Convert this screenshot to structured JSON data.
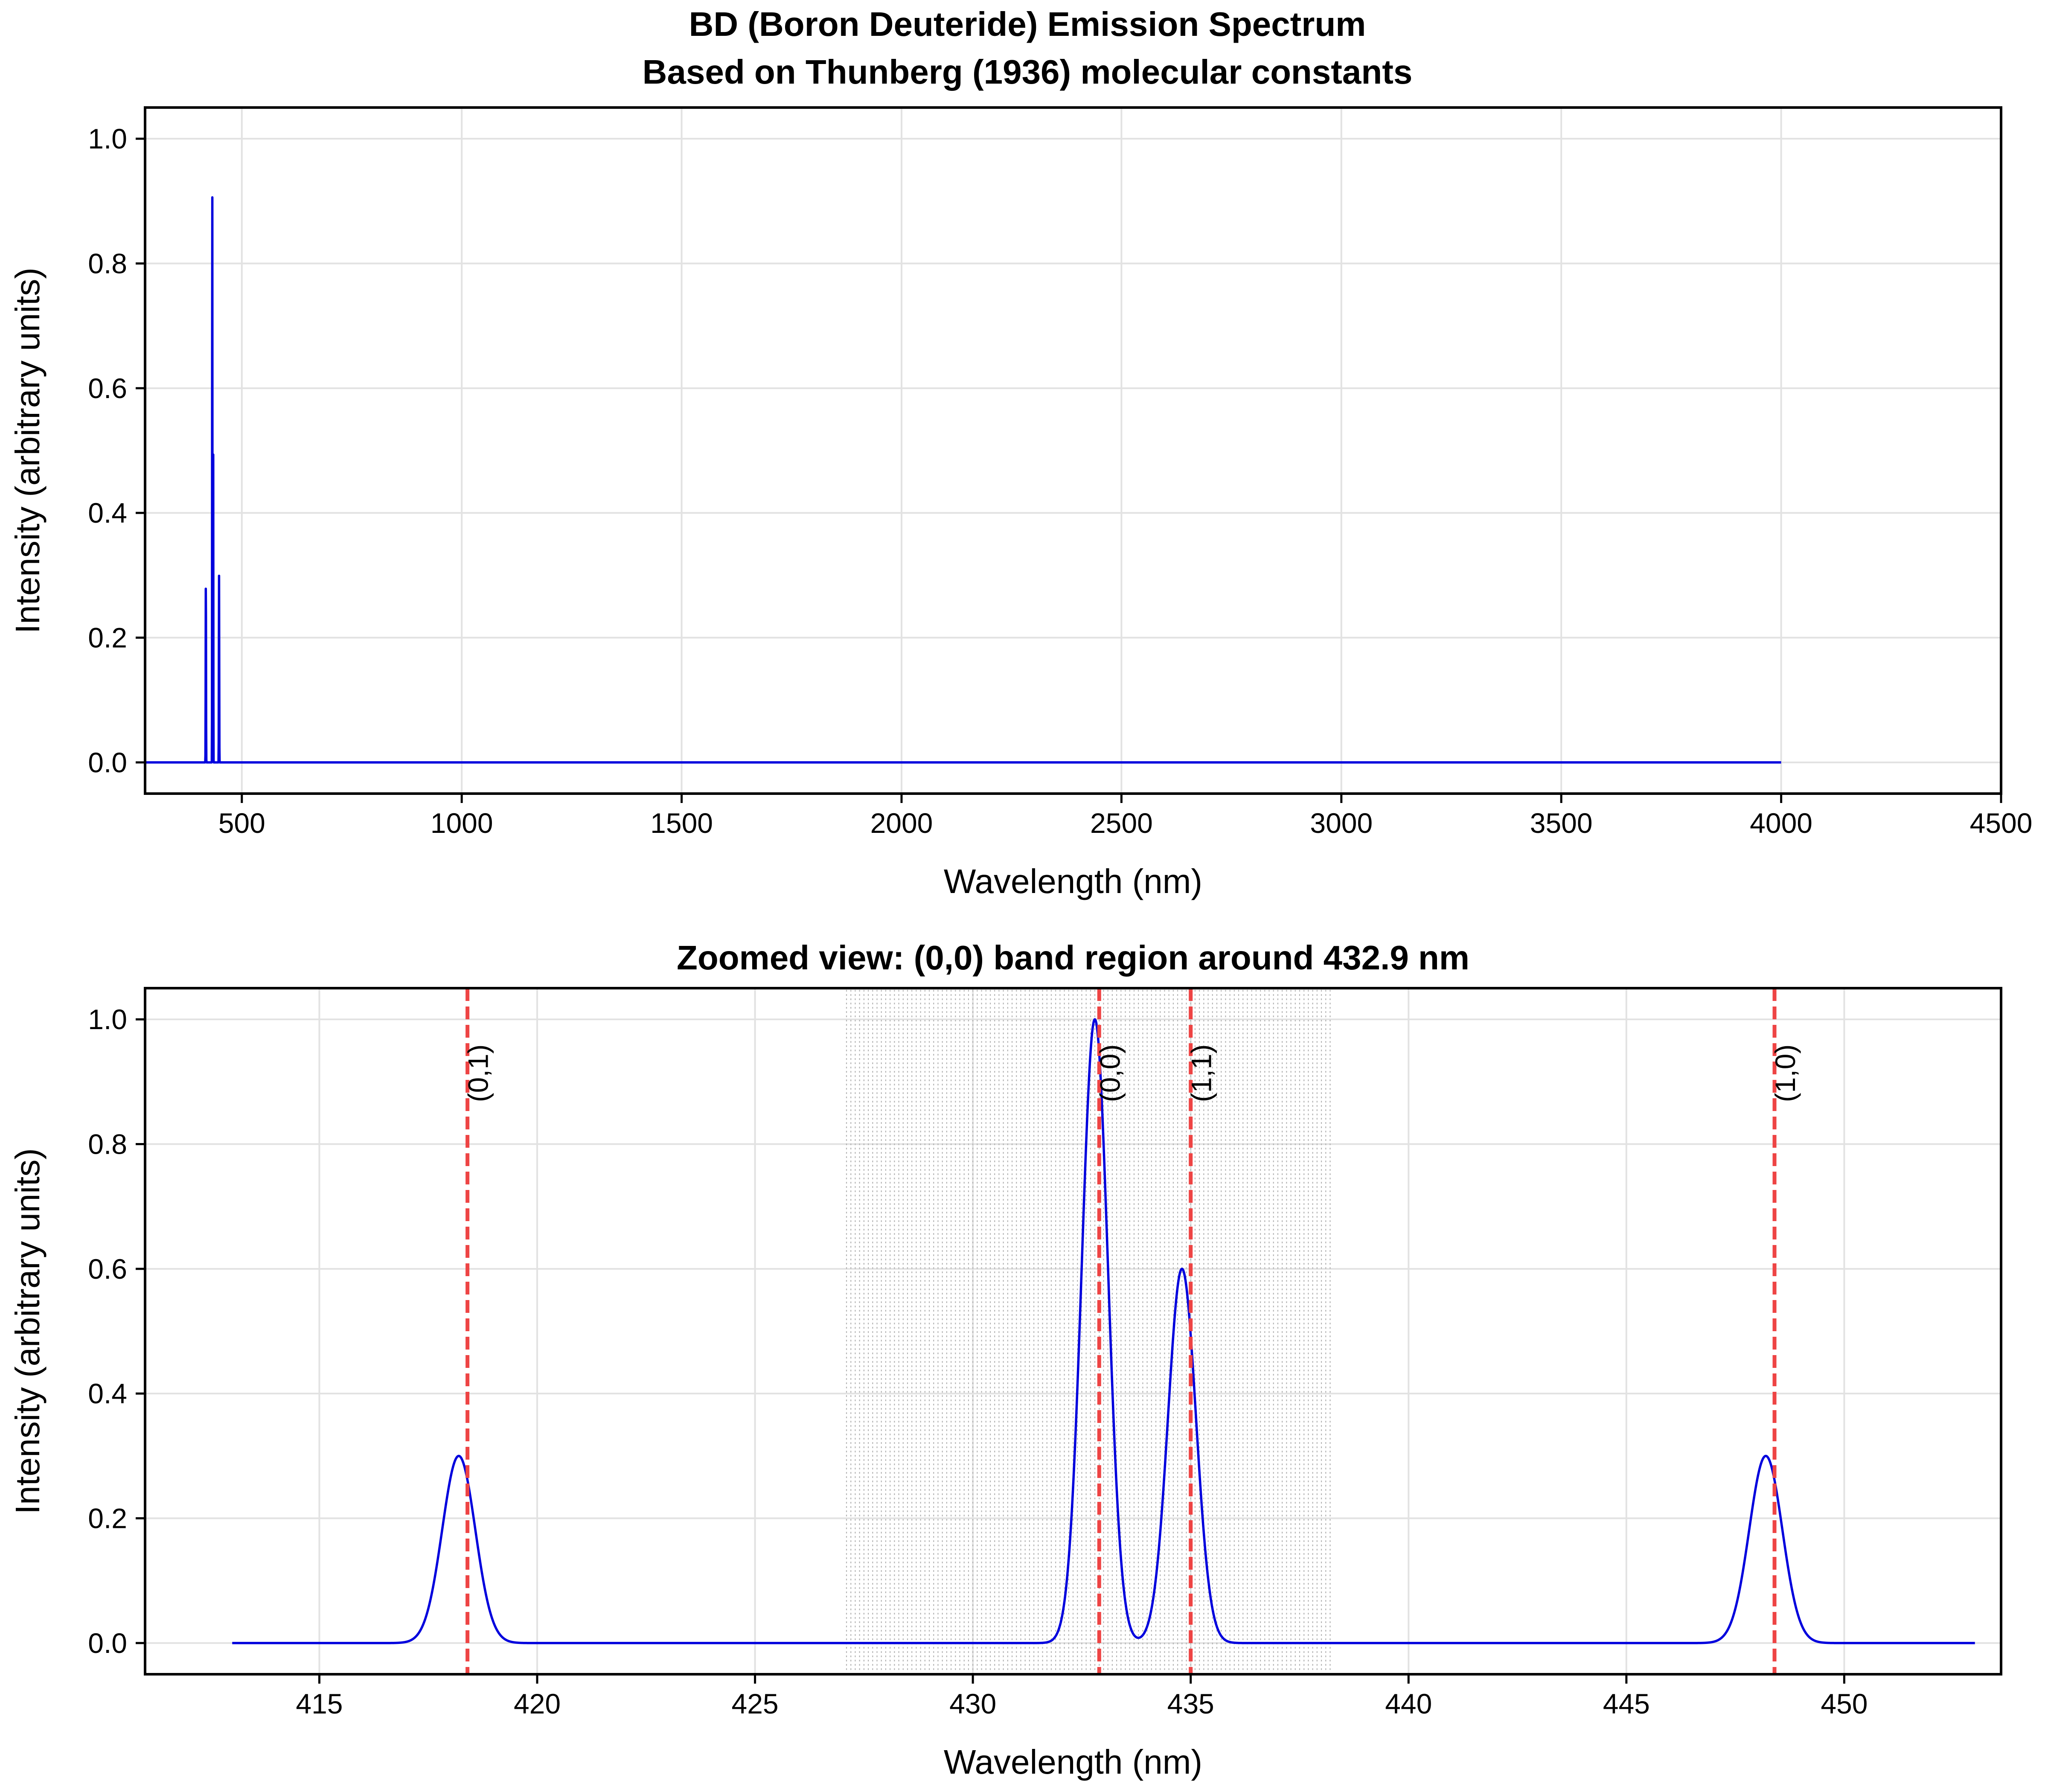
{
  "figure": {
    "title_line1": "BD (Boron Deuteride) Emission Spectrum",
    "title_line2": "Based on Thunberg (1936) molecular constants"
  },
  "chart_data": [
    {
      "type": "line",
      "title": "",
      "xlabel": "Wavelength (nm)",
      "ylabel": "Intensity (arbitrary units)",
      "xlim": [
        280,
        4500
      ],
      "ylim": [
        -0.05,
        1.05
      ],
      "xticks": [
        500,
        1000,
        1500,
        2000,
        2500,
        3000,
        3500,
        4000,
        4500
      ],
      "yticks": [
        0.0,
        0.2,
        0.4,
        0.6,
        0.8,
        1.0
      ],
      "grid": true,
      "line_color": "#0000dd",
      "spectrum_range": [
        280,
        4000
      ],
      "peaks": [
        {
          "center": 418.2,
          "height": 0.3,
          "sigma": 0.38
        },
        {
          "center": 432.8,
          "height": 1.0,
          "sigma": 0.3
        },
        {
          "center": 434.8,
          "height": 0.6,
          "sigma": 0.32
        },
        {
          "center": 448.2,
          "height": 0.3,
          "sigma": 0.38
        }
      ]
    },
    {
      "type": "line",
      "title": "Zoomed view: (0,0) band region around 432.9 nm",
      "xlabel": "Wavelength (nm)",
      "ylabel": "Intensity (arbitrary units)",
      "xlim": [
        411,
        453.6
      ],
      "ylim": [
        -0.05,
        1.05
      ],
      "xticks": [
        415,
        420,
        425,
        430,
        435,
        440,
        445,
        450
      ],
      "yticks": [
        0.0,
        0.2,
        0.4,
        0.6,
        0.8,
        1.0
      ],
      "grid": true,
      "line_color": "#0000dd",
      "spectrum_range": [
        413,
        453
      ],
      "peaks": [
        {
          "center": 418.2,
          "height": 0.3,
          "sigma": 0.38
        },
        {
          "center": 432.8,
          "height": 1.0,
          "sigma": 0.3
        },
        {
          "center": 434.8,
          "height": 0.6,
          "sigma": 0.32
        },
        {
          "center": 448.2,
          "height": 0.3,
          "sigma": 0.38
        }
      ],
      "band_markers": [
        {
          "label": "(0,1)",
          "x": 418.4
        },
        {
          "label": "(0,0)",
          "x": 432.9
        },
        {
          "label": "(1,1)",
          "x": 435.0
        },
        {
          "label": "(1,0)",
          "x": 448.4
        }
      ],
      "band_marker_color": "#ee4444",
      "rotational_lines": {
        "from": 427.1,
        "to": 438.2,
        "step": 0.1,
        "color": "#b4b4b4"
      }
    }
  ]
}
